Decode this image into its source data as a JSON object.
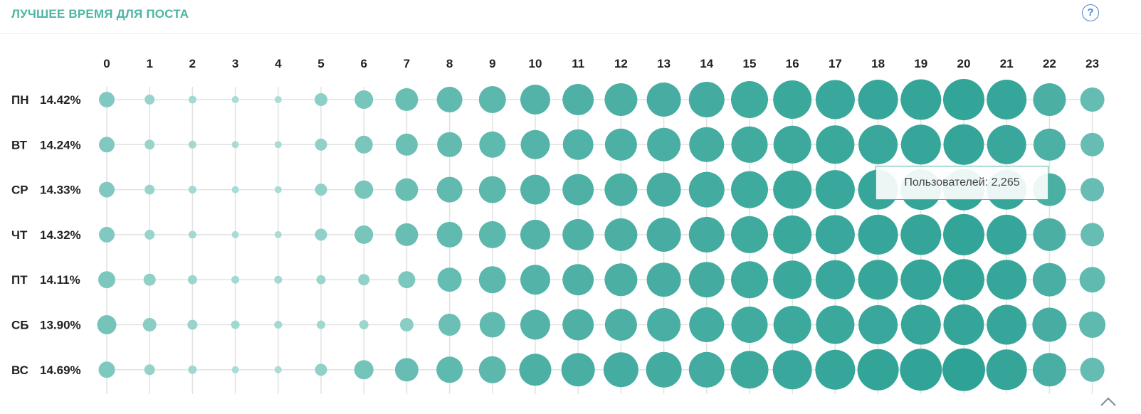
{
  "header": {
    "title": "ЛУЧШЕЕ ВРЕМЯ ДЛЯ ПОСТА",
    "help_icon": "question-circle-icon"
  },
  "tooltip": {
    "text": "Пользователей: 2,265"
  },
  "colors": {
    "accent": "#4cb5a3",
    "bubble_light": "#a8dcd4",
    "bubble_dark": "#2fa296",
    "grid": "#e2e2e2",
    "help": "#4a86c8"
  },
  "chart_data": {
    "type": "bubble-grid",
    "title": "ЛУЧШЕЕ ВРЕМЯ ДЛЯ ПОСТА",
    "hours": [
      "0",
      "1",
      "2",
      "3",
      "4",
      "5",
      "6",
      "7",
      "8",
      "9",
      "10",
      "11",
      "12",
      "13",
      "14",
      "15",
      "16",
      "17",
      "18",
      "19",
      "20",
      "21",
      "22",
      "23"
    ],
    "days": [
      {
        "label": "ПН",
        "percent": "14.42%",
        "values": [
          22,
          14,
          11,
          10,
          10,
          18,
          26,
          32,
          36,
          38,
          42,
          44,
          46,
          48,
          50,
          52,
          54,
          55,
          56,
          57,
          58,
          56,
          46,
          34
        ]
      },
      {
        "label": "ВТ",
        "percent": "14.24%",
        "values": [
          22,
          14,
          11,
          10,
          10,
          17,
          25,
          31,
          35,
          37,
          41,
          43,
          45,
          47,
          49,
          51,
          53,
          54,
          55,
          56,
          57,
          55,
          45,
          33
        ]
      },
      {
        "label": "СР",
        "percent": "14.33%",
        "values": [
          22,
          14,
          11,
          10,
          10,
          17,
          26,
          32,
          36,
          38,
          42,
          44,
          46,
          48,
          50,
          52,
          54,
          55,
          56,
          57,
          58,
          56,
          46,
          33
        ]
      },
      {
        "label": "ЧТ",
        "percent": "14.32%",
        "values": [
          22,
          14,
          11,
          10,
          10,
          17,
          26,
          32,
          36,
          38,
          42,
          44,
          46,
          48,
          50,
          52,
          54,
          55,
          56,
          57,
          58,
          56,
          46,
          33
        ]
      },
      {
        "label": "ПТ",
        "percent": "14.11%",
        "values": [
          24,
          17,
          13,
          11,
          11,
          13,
          16,
          24,
          34,
          38,
          42,
          44,
          46,
          48,
          50,
          52,
          54,
          55,
          56,
          57,
          58,
          56,
          47,
          36
        ]
      },
      {
        "label": "СБ",
        "percent": "13.90%",
        "values": [
          27,
          19,
          14,
          12,
          11,
          12,
          13,
          19,
          31,
          36,
          42,
          44,
          45,
          47,
          49,
          51,
          53,
          54,
          55,
          56,
          57,
          56,
          48,
          37
        ]
      },
      {
        "label": "ВС",
        "percent": "14.69%",
        "values": [
          23,
          15,
          12,
          10,
          10,
          17,
          27,
          33,
          37,
          38,
          45,
          47,
          49,
          50,
          50,
          53,
          55,
          56,
          58,
          59,
          60,
          57,
          47,
          34
        ]
      }
    ]
  }
}
